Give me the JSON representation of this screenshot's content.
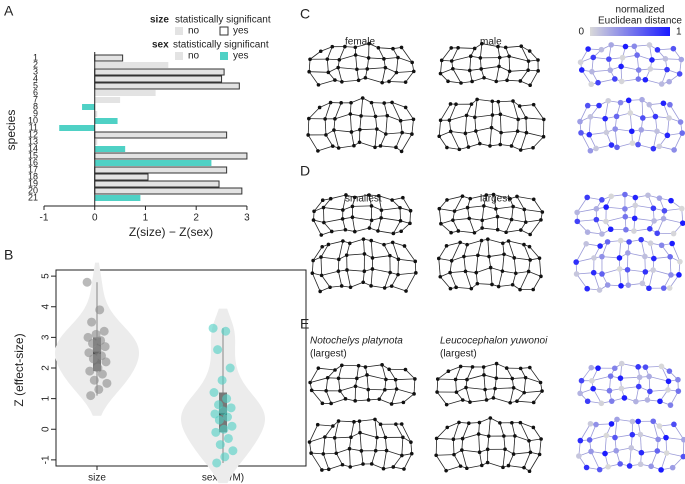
{
  "chart_data": [
    {
      "type": "bar",
      "panel": "A",
      "orientation": "horizontal",
      "y_label": "species",
      "x_label": "Z(size) − Z(sex)",
      "categories": [
        "1",
        "2",
        "3",
        "4",
        "5",
        "6",
        "7",
        "8",
        "9",
        "10",
        "11",
        "12",
        "13",
        "14",
        "15",
        "16",
        "17",
        "18",
        "19",
        "20",
        "21"
      ],
      "values": [
        0.55,
        1.45,
        2.55,
        2.5,
        2.85,
        1.2,
        0.5,
        -0.25,
        0.05,
        0.45,
        -0.7,
        2.6,
        0.05,
        0.6,
        3.0,
        2.3,
        2.6,
        1.05,
        2.45,
        2.9,
        0.9
      ],
      "size_significant": [
        true,
        false,
        true,
        true,
        true,
        false,
        false,
        false,
        false,
        false,
        false,
        true,
        false,
        false,
        true,
        false,
        true,
        true,
        true,
        true,
        false
      ],
      "sex_significant": [
        false,
        false,
        false,
        false,
        false,
        false,
        false,
        true,
        false,
        true,
        true,
        false,
        false,
        true,
        false,
        true,
        false,
        false,
        false,
        false,
        true
      ],
      "xlim": [
        -1,
        3.1
      ],
      "xticks": [
        -1,
        0,
        1,
        2,
        3
      ],
      "legend": {
        "size_title": "size",
        "sex_title": "sex",
        "suffix": "statistically significant",
        "no": "no",
        "yes": "yes"
      },
      "colors": {
        "not_significant": "#e3e3e3",
        "sex_significant": "#4fd1c5",
        "size_border": "#333333"
      }
    },
    {
      "type": "violin",
      "panel": "B",
      "y_label": "Z (effect-size)",
      "categories": [
        "size",
        "sex (F/M)"
      ],
      "series": [
        {
          "name": "size",
          "color": "#8c8c8c",
          "values": [
            4.8,
            3.9,
            3.5,
            3.2,
            3.1,
            3.0,
            2.9,
            2.8,
            2.7,
            2.6,
            2.5,
            2.4,
            2.3,
            2.2,
            2.0,
            1.9,
            1.8,
            1.6,
            1.5,
            1.3,
            1.1
          ]
        },
        {
          "name": "sex (F/M)",
          "color": "#4fd1c5",
          "values": [
            3.3,
            3.2,
            2.6,
            2.0,
            1.6,
            1.2,
            1.0,
            0.8,
            0.7,
            0.6,
            0.5,
            0.4,
            0.3,
            0.1,
            0.0,
            -0.1,
            -0.3,
            -0.5,
            -0.7,
            -0.9,
            -1.1
          ]
        }
      ],
      "ylim": [
        -1.2,
        5.2
      ],
      "yticks": [
        -1,
        0,
        1,
        2,
        3,
        4,
        5
      ]
    },
    {
      "type": "landmarks",
      "panels": [
        {
          "panel": "C",
          "left": "female",
          "right": "male"
        },
        {
          "panel": "D",
          "left": "smallest",
          "right": "largest"
        },
        {
          "panel": "E",
          "left": "Notochelys platynota",
          "left_sub": "(largest)",
          "right": "Leucocephalon yuwonoi",
          "right_sub": "(largest)"
        }
      ],
      "colorbar": {
        "title": "normalized",
        "subtitle": "Euclidean distance",
        "min": "0",
        "max": "1",
        "low": "#d9d9d9",
        "high": "#1a1aff"
      }
    }
  ]
}
